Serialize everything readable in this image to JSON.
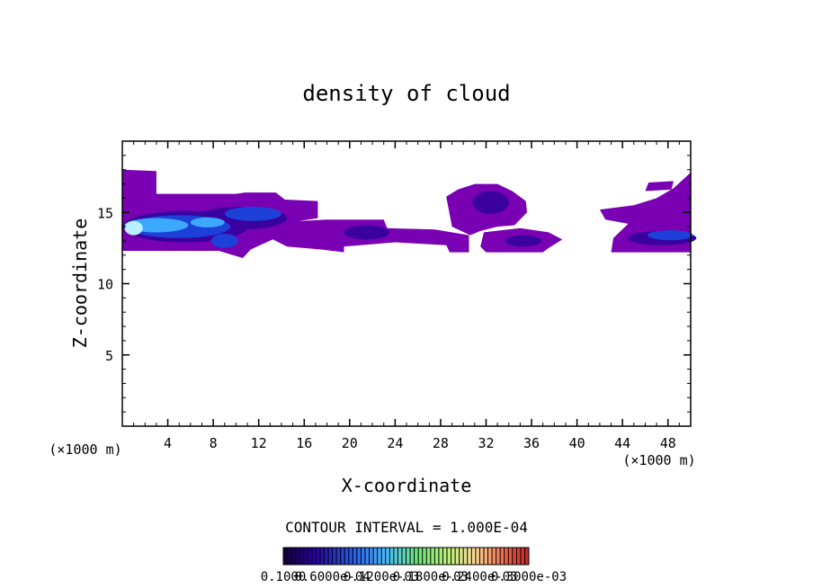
{
  "chart_data": {
    "type": "heatmap",
    "title": "density of cloud",
    "xlabel": "X-coordinate",
    "ylabel": "Z-coordinate",
    "x_unit": "(×1000 m)",
    "x_unit_right": "(×1000 m)",
    "xlim": [
      0,
      50
    ],
    "ylim": [
      0,
      20
    ],
    "x_ticks": [
      4,
      8,
      12,
      16,
      20,
      24,
      28,
      32,
      36,
      40,
      44,
      48
    ],
    "y_ticks": [
      5,
      10,
      15
    ],
    "contour_interval_text": "CONTOUR INTERVAL = 1.000E-04",
    "colorbar_labels": [
      "0.1000",
      "0.6000e-04",
      "0.1200e-03",
      "0.1800e-03",
      "0.2400e-03",
      "0.3000e-03"
    ],
    "colors": {
      "low": "#7a00b4",
      "mid_low": "#3a00a0",
      "mid": "#1d40d8",
      "high": "#3ca8ff",
      "highest": "#b9efff"
    },
    "regions": [
      {
        "name": "left-mass",
        "x_range": [
          0,
          15
        ],
        "z_range": [
          11.8,
          18.0
        ],
        "level": "high"
      },
      {
        "name": "central-band",
        "x_range": [
          13,
          38.5
        ],
        "z_range": [
          12.2,
          14.5
        ],
        "level": "low"
      },
      {
        "name": "tower-32",
        "x_range": [
          29.5,
          34.5
        ],
        "z_range": [
          12.2,
          17.0
        ],
        "level": "mid_low"
      },
      {
        "name": "right-mass",
        "x_range": [
          42.5,
          50
        ],
        "z_range": [
          12.2,
          17.8
        ],
        "level": "mid"
      }
    ]
  }
}
